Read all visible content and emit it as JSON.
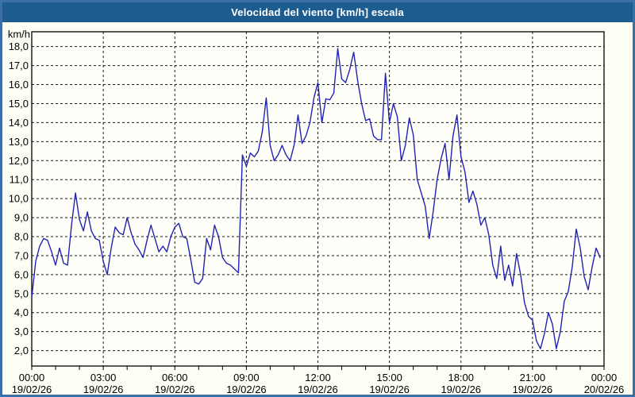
{
  "title": "Velocidad del viento [km/h] escala",
  "colors": {
    "titlebar_bg": "#1d5c8f",
    "titlebar_text": "#ffffff",
    "window_border": "#3a6fa8",
    "page_bg": "#fdfff5",
    "plot_bg": "#fefff9",
    "grid": "#1a1a1a",
    "axis": "#000000",
    "line": "#2222b2"
  },
  "chart_data": {
    "type": "line",
    "title": "Velocidad del viento [km/h] escala",
    "y_unit_label": "km/h",
    "ylabel": "",
    "xlabel": "",
    "grid": "dashed",
    "legend_position": "none",
    "ylim": [
      1.19,
      18.78
    ],
    "y_ticks": [
      {
        "value": 18,
        "label": "18,0"
      },
      {
        "value": 17,
        "label": "17,0"
      },
      {
        "value": 16,
        "label": "16,0"
      },
      {
        "value": 15,
        "label": "15,0"
      },
      {
        "value": 14,
        "label": "14,0"
      },
      {
        "value": 13,
        "label": "13,0"
      },
      {
        "value": 12,
        "label": "12,0"
      },
      {
        "value": 11,
        "label": "11,0"
      },
      {
        "value": 10,
        "label": "10,0"
      },
      {
        "value": 9,
        "label": "9,0"
      },
      {
        "value": 8,
        "label": "8,0"
      },
      {
        "value": 7,
        "label": "7,0"
      },
      {
        "value": 6,
        "label": "6,0"
      },
      {
        "value": 5,
        "label": "5,0"
      },
      {
        "value": 4,
        "label": "4,0"
      },
      {
        "value": 3,
        "label": "3,0"
      },
      {
        "value": 2,
        "label": "2,0"
      }
    ],
    "x_axis": {
      "xlim_hours": [
        0,
        24
      ],
      "minor_tick_interval_hours": 1,
      "major_ticks": [
        {
          "hour": 0,
          "time_label": "00:00",
          "date_label": "19/02/26"
        },
        {
          "hour": 3,
          "time_label": "03:00",
          "date_label": "19/02/26"
        },
        {
          "hour": 6,
          "time_label": "06:00",
          "date_label": "19/02/26"
        },
        {
          "hour": 9,
          "time_label": "09:00",
          "date_label": "19/02/26"
        },
        {
          "hour": 12,
          "time_label": "12:00",
          "date_label": "19/02/26"
        },
        {
          "hour": 15,
          "time_label": "15:00",
          "date_label": "19/02/26"
        },
        {
          "hour": 18,
          "time_label": "18:00",
          "date_label": "19/02/26"
        },
        {
          "hour": 21,
          "time_label": "21:00",
          "date_label": "19/02/26"
        },
        {
          "hour": 24,
          "time_label": "00:00",
          "date_label": "20/02/26"
        }
      ]
    },
    "series": [
      {
        "name": "Velocidad del viento",
        "color": "#2222b2",
        "start_time": "00:00",
        "sample_interval_minutes": 10,
        "values_kmh": [
          4.8,
          6.7,
          7.5,
          7.9,
          7.8,
          7.2,
          6.5,
          7.4,
          6.6,
          6.5,
          8.6,
          10.3,
          8.9,
          8.3,
          9.3,
          8.3,
          7.9,
          7.8,
          6.7,
          6.0,
          7.4,
          8.5,
          8.2,
          8.1,
          9.0,
          8.2,
          7.6,
          7.3,
          6.9,
          7.8,
          8.6,
          7.9,
          7.2,
          7.5,
          7.2,
          8.0,
          8.5,
          8.7,
          8.0,
          7.9,
          6.8,
          5.6,
          5.5,
          5.8,
          7.9,
          7.3,
          8.6,
          8.0,
          6.9,
          6.6,
          6.5,
          6.3,
          6.1,
          12.3,
          11.7,
          12.4,
          12.2,
          12.5,
          13.5,
          15.3,
          12.8,
          12.0,
          12.3,
          12.8,
          12.3,
          12.0,
          12.8,
          14.4,
          12.9,
          13.3,
          14.0,
          15.3,
          16.1,
          14.0,
          15.25,
          15.2,
          15.55,
          17.9,
          16.3,
          16.1,
          16.8,
          17.7,
          16.2,
          15.0,
          14.1,
          14.2,
          13.3,
          13.1,
          13.1,
          16.6,
          14.0,
          15.0,
          14.3,
          12.0,
          12.8,
          14.25,
          13.35,
          11.0,
          10.3,
          9.6,
          7.9,
          9.3,
          11.0,
          12.1,
          12.9,
          11.0,
          13.3,
          14.4,
          12.2,
          11.4,
          9.8,
          10.4,
          9.7,
          8.6,
          9.0,
          8.1,
          6.5,
          5.8,
          7.5,
          5.7,
          6.5,
          5.4,
          7.1,
          6.0,
          4.5,
          3.8,
          3.6,
          2.5,
          2.1,
          2.9,
          4.0,
          3.4,
          2.1,
          3.0,
          4.6,
          5.1,
          6.4,
          8.4,
          7.4,
          5.9,
          5.2,
          6.4,
          7.4,
          6.9
        ]
      }
    ]
  }
}
